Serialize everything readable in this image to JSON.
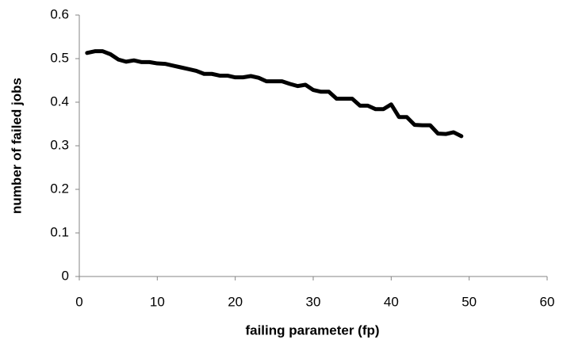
{
  "chart_data": {
    "type": "line",
    "x_label": "failing parameter (fp)",
    "y_label": "number of failed jobs",
    "x": [
      1,
      2,
      3,
      4,
      5,
      6,
      7,
      8,
      9,
      10,
      11,
      12,
      13,
      14,
      15,
      16,
      17,
      18,
      19,
      20,
      21,
      22,
      23,
      24,
      25,
      26,
      27,
      28,
      29,
      30,
      31,
      32,
      33,
      34,
      35,
      36,
      37,
      38,
      39,
      40,
      41,
      42,
      43,
      44,
      45,
      46,
      47,
      48,
      49
    ],
    "series": [
      {
        "color": "#000000",
        "values": [
          0.513,
          0.517,
          0.517,
          0.51,
          0.498,
          0.493,
          0.496,
          0.492,
          0.492,
          0.489,
          0.488,
          0.484,
          0.48,
          0.476,
          0.472,
          0.465,
          0.465,
          0.461,
          0.461,
          0.457,
          0.457,
          0.46,
          0.456,
          0.448,
          0.448,
          0.448,
          0.442,
          0.437,
          0.44,
          0.428,
          0.424,
          0.424,
          0.408,
          0.408,
          0.408,
          0.392,
          0.392,
          0.384,
          0.384,
          0.395,
          0.366,
          0.366,
          0.348,
          0.347,
          0.347,
          0.328,
          0.327,
          0.331,
          0.322
        ]
      }
    ],
    "xlim": [
      0,
      60
    ],
    "xticks": [
      0,
      10,
      20,
      30,
      40,
      50,
      60
    ],
    "ylim": [
      0,
      0.6
    ],
    "yticks": [
      0,
      0.1,
      0.2,
      0.3,
      0.4,
      0.5,
      0.6
    ],
    "grid": false
  }
}
